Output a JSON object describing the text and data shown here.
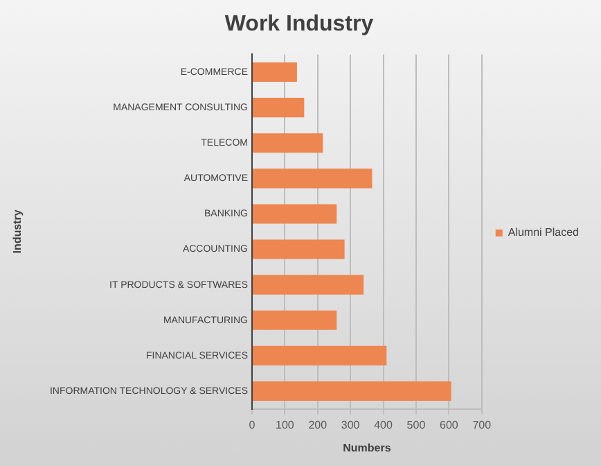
{
  "chart_data": {
    "type": "bar",
    "orientation": "horizontal",
    "title": "Work Industry",
    "xlabel": "Numbers",
    "ylabel": "Industry",
    "categories": [
      "E-COMMERCE",
      "MANAGEMENT CONSULTING",
      "TELECOM",
      "AUTOMOTIVE",
      "BANKING",
      "ACCOUNTING",
      "IT PRODUCTS & SOFTWARES",
      "MANUFACTURING",
      "FINANCIAL SERVICES",
      "INFORMATION TECHNOLOGY & SERVICES"
    ],
    "series": [
      {
        "name": "Alumni Placed",
        "color": "#ed8650",
        "values": [
          137,
          159,
          216,
          366,
          258,
          282,
          340,
          258,
          410,
          607
        ]
      }
    ],
    "xlim": [
      0,
      700
    ],
    "xticks": [
      0,
      100,
      200,
      300,
      400,
      500,
      600,
      700
    ],
    "grid": "x",
    "legend": "right"
  }
}
